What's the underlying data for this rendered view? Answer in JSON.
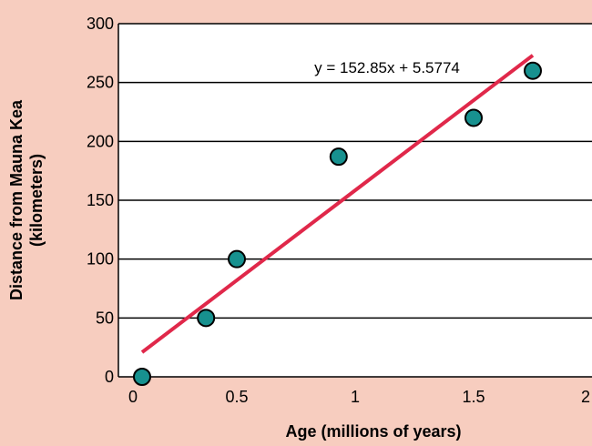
{
  "chart_data": {
    "type": "scatter",
    "title": "",
    "xlabel": "Age (millions of years)",
    "ylabel_line1": "Distance from Mauna Kea",
    "ylabel_line2": "(kilometers)",
    "xlim": [
      0,
      2
    ],
    "ylim": [
      0,
      300
    ],
    "xticks": [
      0,
      0.5,
      1,
      1.5,
      2
    ],
    "xtick_labels": [
      "0",
      "0.5",
      "1",
      "1.5",
      "2"
    ],
    "yticks": [
      0,
      50,
      100,
      150,
      200,
      250,
      300
    ],
    "ytick_labels": [
      "0",
      "50",
      "100",
      "150",
      "200",
      "250",
      "300"
    ],
    "grid": "horizontal",
    "points": [
      {
        "x": 0.1,
        "y": 0
      },
      {
        "x": 0.37,
        "y": 50
      },
      {
        "x": 0.5,
        "y": 100
      },
      {
        "x": 0.93,
        "y": 187
      },
      {
        "x": 1.5,
        "y": 220
      },
      {
        "x": 1.75,
        "y": 260
      }
    ],
    "trendline": {
      "slope": 152.85,
      "intercept": 5.5774,
      "x_start": 0.1,
      "x_end": 1.75,
      "equation": "y = 152.85x + 5.5774"
    },
    "colors": {
      "background": "#f7cdbf",
      "plot_area": "#ffffff",
      "point_fill": "#17918f",
      "point_stroke": "#000000",
      "trendline": "#e0284a",
      "grid": "#000000"
    }
  }
}
